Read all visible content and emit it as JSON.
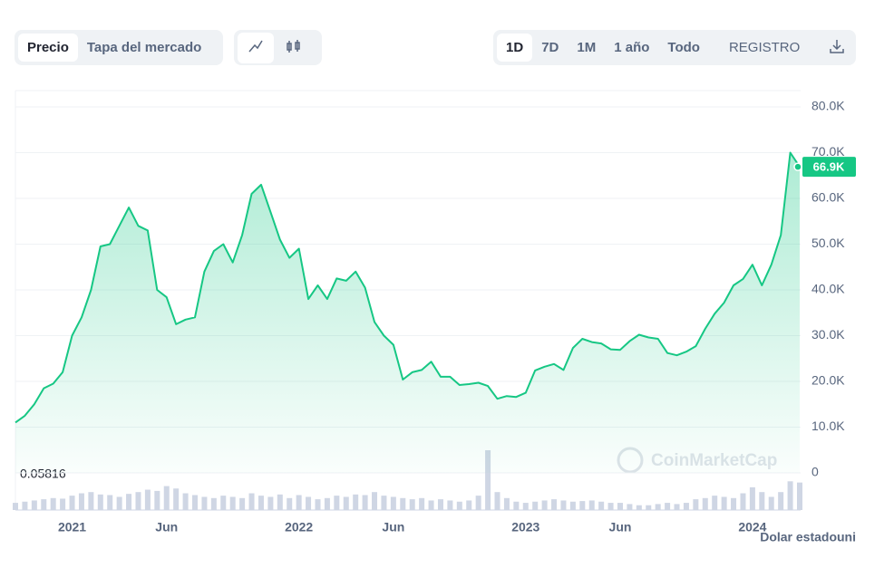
{
  "ui": {
    "tabs": [
      "Precio",
      "Tapa del mercado"
    ],
    "ranges": [
      "1D",
      "7D",
      "1M",
      "1 año",
      "Todo"
    ],
    "register": "REGISTRO",
    "currency": "Dolar estadouni",
    "watermark": "CoinMarketCap"
  },
  "chart_data": {
    "type": "line",
    "color": "#16c784",
    "categories": [
      null,
      null,
      null,
      null,
      null,
      null,
      "2021",
      null,
      null,
      null,
      null,
      null,
      null,
      null,
      null,
      null,
      "Jun",
      null,
      null,
      null,
      null,
      null,
      null,
      null,
      null,
      null,
      null,
      null,
      null,
      null,
      "2022",
      null,
      null,
      null,
      null,
      null,
      null,
      null,
      null,
      null,
      "Jun",
      null,
      null,
      null,
      null,
      null,
      null,
      null,
      null,
      null,
      null,
      null,
      null,
      null,
      "2023",
      null,
      null,
      null,
      null,
      null,
      null,
      null,
      null,
      null,
      "Jun",
      null,
      null,
      null,
      null,
      null,
      null,
      null,
      null,
      null,
      null,
      null,
      null,
      null,
      "2024",
      null,
      null,
      null,
      null,
      null
    ],
    "values": [
      11000,
      12500,
      15000,
      18500,
      19500,
      22000,
      30000,
      34000,
      40000,
      49500,
      50000,
      54000,
      58000,
      54000,
      53000,
      40000,
      38400,
      32500,
      33500,
      34000,
      44000,
      48500,
      50000,
      46000,
      52000,
      61000,
      63000,
      57000,
      51000,
      47000,
      49000,
      38000,
      41000,
      38000,
      42500,
      42000,
      44000,
      40500,
      33000,
      30000,
      28000,
      20400,
      22000,
      22500,
      24300,
      21000,
      21000,
      19200,
      19400,
      19700,
      19000,
      16200,
      16800,
      16600,
      17500,
      22400,
      23200,
      23800,
      22500,
      27300,
      29300,
      28600,
      28300,
      27000,
      26900,
      28800,
      30200,
      29600,
      29300,
      26200,
      25700,
      26500,
      27700,
      31500,
      34800,
      37200,
      41000,
      42400,
      45500,
      41000,
      45500,
      52000,
      70000,
      66900
    ],
    "value_labels": [
      null,
      null,
      null,
      null,
      null,
      null,
      null,
      null,
      null,
      null,
      null,
      null,
      null,
      null,
      null,
      null,
      null,
      null,
      null,
      null,
      null,
      null,
      null,
      null,
      null,
      null,
      null,
      null,
      null,
      null,
      null,
      null,
      null,
      null,
      null,
      null,
      null,
      null,
      null,
      null,
      null,
      null,
      null,
      null,
      null,
      null,
      null,
      null,
      null,
      null,
      null,
      null,
      null,
      null,
      null,
      null,
      null,
      null,
      null,
      null,
      null,
      null,
      null,
      null,
      null,
      null,
      null,
      null,
      null,
      null,
      null,
      null,
      null,
      null,
      null,
      null,
      null,
      null,
      null,
      null,
      null,
      null,
      null,
      "66.9K"
    ],
    "ylim": [
      0,
      80000
    ],
    "yticks": [
      0,
      {
        "value": 10000,
        "label": "10.0K"
      },
      {
        "value": 20000,
        "label": "20.0K"
      },
      {
        "value": 30000,
        "label": "30.0K"
      },
      {
        "value": 40000,
        "label": "40.0K"
      },
      {
        "value": 50000,
        "label": "50.0K"
      },
      {
        "value": 60000,
        "label": "60.0K"
      },
      {
        "value": 70000,
        "label": "70.0K"
      },
      {
        "value": 80000,
        "label": "80.0K"
      }
    ],
    "grid": true,
    "annotation": "0.05816",
    "volume": {
      "color": "#cfd6e4",
      "ylim": [
        0,
        100
      ],
      "values": [
        12,
        14,
        16,
        18,
        20,
        19,
        24,
        28,
        30,
        26,
        25,
        22,
        27,
        30,
        34,
        32,
        40,
        36,
        28,
        25,
        22,
        20,
        24,
        22,
        20,
        28,
        24,
        22,
        26,
        20,
        25,
        22,
        18,
        20,
        24,
        22,
        26,
        25,
        30,
        24,
        22,
        20,
        18,
        20,
        16,
        18,
        16,
        14,
        16,
        24,
        100,
        30,
        20,
        14,
        12,
        14,
        16,
        18,
        16,
        14,
        15,
        16,
        14,
        12,
        12,
        10,
        8,
        8,
        10,
        12,
        10,
        12,
        18,
        20,
        24,
        22,
        20,
        28,
        38,
        30,
        22,
        30,
        48,
        46
      ]
    }
  }
}
